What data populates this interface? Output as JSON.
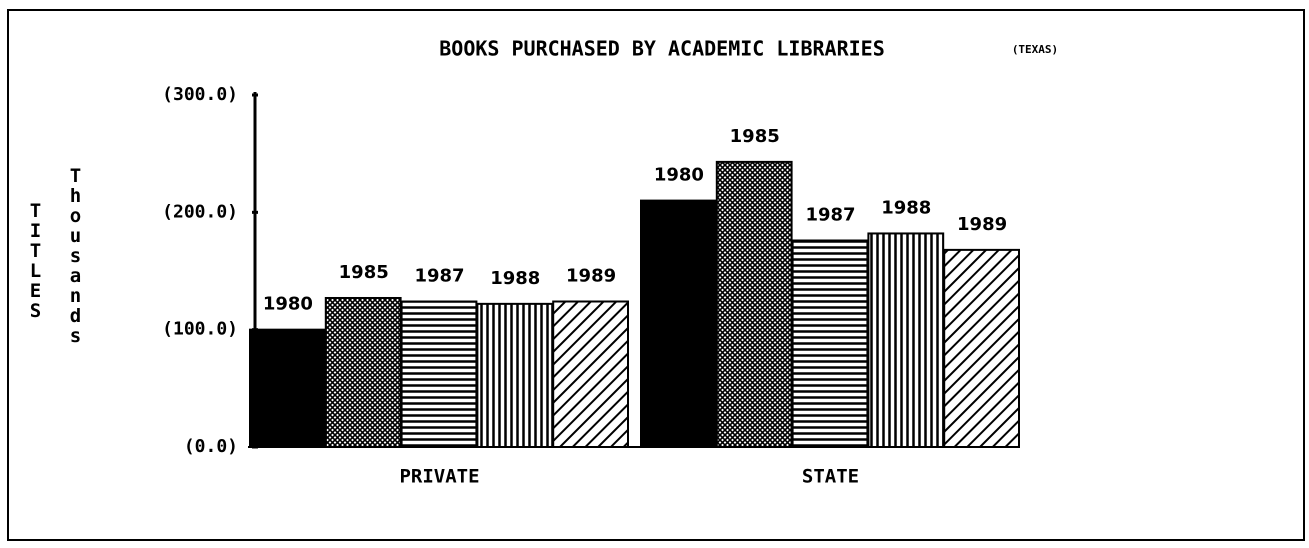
{
  "chart_data": {
    "type": "bar",
    "title": "BOOKS PURCHASED BY ACADEMIC LIBRARIES",
    "subtitle": "(TEXAS)",
    "ylabel": "TITLES",
    "ylabel2": "Thousands",
    "categories": [
      "PRIVATE",
      "STATE"
    ],
    "series": [
      {
        "name": "1980",
        "color": "#000000",
        "pattern": "solid",
        "values": [
          100,
          210
        ]
      },
      {
        "name": "1985",
        "color": "#000000",
        "pattern": "crosshatch",
        "values": [
          127,
          243
        ]
      },
      {
        "name": "1987",
        "color": "#000000",
        "pattern": "horizontal",
        "values": [
          124,
          176
        ]
      },
      {
        "name": "1988",
        "color": "#000000",
        "pattern": "vertical",
        "values": [
          122,
          182
        ]
      },
      {
        "name": "1989",
        "color": "#000000",
        "pattern": "diagonal",
        "values": [
          124,
          168
        ]
      }
    ],
    "ylim": [
      0,
      300
    ],
    "yticks": [
      {
        "value": 0,
        "label": "(0.0)"
      },
      {
        "value": 100,
        "label": "(100.0)"
      },
      {
        "value": 200,
        "label": "(200.0)"
      },
      {
        "value": 300,
        "label": "(300.0)"
      }
    ],
    "grid": false
  }
}
